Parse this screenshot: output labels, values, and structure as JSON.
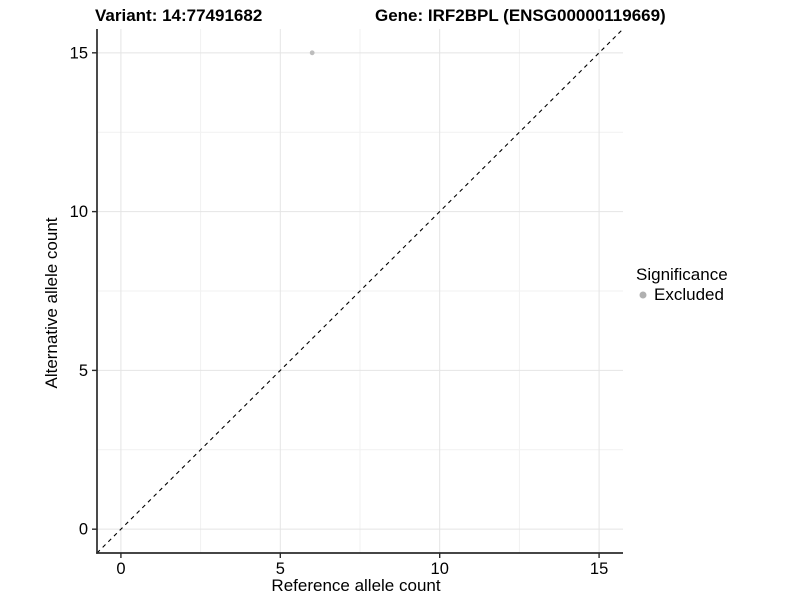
{
  "titles": {
    "left": "Variant: 14:77491682",
    "right": "Gene: IRF2BPL (ENSG00000119669)"
  },
  "chart_data": {
    "type": "scatter",
    "title_left": "Variant: 14:77491682",
    "title_right": "Gene: IRF2BPL (ENSG00000119669)",
    "xlabel": "Reference allele count",
    "ylabel": "Alternative allele count",
    "xlim": [
      -0.75,
      15.75
    ],
    "ylim": [
      -0.75,
      15.75
    ],
    "xticks": [
      0,
      5,
      10,
      15
    ],
    "yticks": [
      0,
      5,
      10,
      15
    ],
    "x_minor_gridlines": [
      2.5,
      7.5,
      12.5
    ],
    "y_minor_gridlines": [
      2.5,
      7.5,
      12.5
    ],
    "grid": "on",
    "series": [
      {
        "name": "Excluded",
        "points": [
          {
            "x": 6,
            "y": 15
          }
        ],
        "color": "#bdbdbd"
      }
    ],
    "reference_line": {
      "kind": "identity",
      "style": "dashed",
      "color": "#000000"
    },
    "legend": {
      "position": "right",
      "title": "Significance",
      "entries": [
        {
          "label": "Excluded",
          "color": "#b0b0b0"
        }
      ]
    }
  },
  "colors": {
    "background": "#ffffff",
    "grid_major": "#e4e4e4",
    "grid_minor": "#f1f1f1",
    "axis_line": "#2b2b2b",
    "tick_label": "#000000",
    "point": "#bdbdbd",
    "legend_dot": "#b0b0b0"
  }
}
